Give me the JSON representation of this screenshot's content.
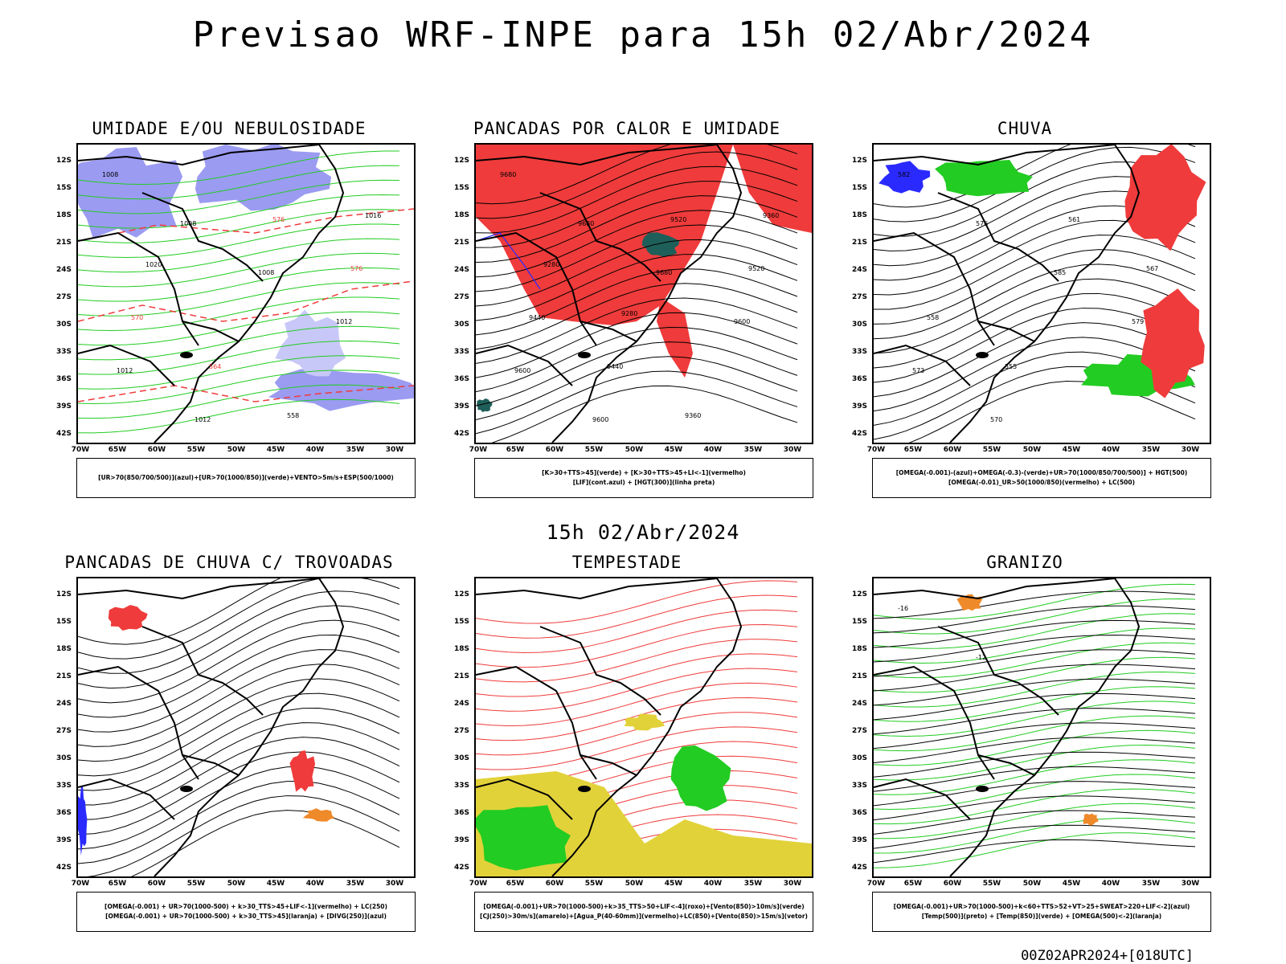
{
  "title": "Previsao WRF-INPE  para 15h 02/Abr/2024",
  "mid_title": "15h 02/Abr/2024",
  "footer": "00Z02APR2024+[018UTC]",
  "lat_labels": [
    "12S",
    "15S",
    "18S",
    "21S",
    "24S",
    "27S",
    "30S",
    "33S",
    "36S",
    "39S",
    "42S"
  ],
  "lon_labels": [
    "70W",
    "65W",
    "60W",
    "55W",
    "50W",
    "45W",
    "40W",
    "35W",
    "30W"
  ],
  "colors": {
    "blue": "#9b9bf2",
    "green": "#22cc22",
    "red": "#ef3b3b",
    "yellow": "#e2d23a",
    "orange": "#ef8a2a",
    "teal": "#1f5f5a",
    "darkblue": "#2a2aff"
  },
  "panels": [
    {
      "title": "UMIDADE E/OU NEBULOSIDADE",
      "legend": [
        "[UR>70(850/700/500)](azul)+[UR>70(1000/850)](verde)+VENTO>5m/s+ESP(500/1000)"
      ],
      "contour_labels": [
        "1008",
        "1008",
        "1008",
        "1012",
        "1012",
        "1012",
        "576",
        "576",
        "570",
        "564",
        "558",
        "1016",
        "1020"
      ]
    },
    {
      "title": "PANCADAS POR CALOR E UMIDADE",
      "legend": [
        "[K>30+TTS>45](verde) + [K>30+TTS>45+LI<-1](vermelho)",
        "[LIF](cont.azul) + [HGT(300)](linha preta)"
      ],
      "contour_labels": [
        "9680",
        "9680",
        "9680",
        "9600",
        "9600",
        "9600",
        "9520",
        "9520",
        "9440",
        "9440",
        "9360",
        "9360",
        "9280",
        "9280"
      ]
    },
    {
      "title": "CHUVA",
      "legend": [
        "[OMEGA(-0.001)-(azul)+OMEGA(-0.3)-(verde)+UR>70(1000/850/700/500)] + HGT(500)",
        "[OMEGA(-0.01)_UR>50(1000/850)(vermelho) + LC(500)"
      ],
      "contour_labels": [
        "582",
        "576",
        "585",
        "579",
        "573",
        "570",
        "561",
        "567",
        "558",
        "555"
      ]
    },
    {
      "title": "PANCADAS DE CHUVA C/ TROVOADAS",
      "legend": [
        "[OMEGA(-0.001) + UR>70(1000-500) + k>30_TTS>45+LIF<-1](vermelho) + LC(250)",
        "[OMEGA(-0.001) + UR>70(1000-500) + k>30_TTS>45](laranja) + [DIVG(250)](azul)"
      ],
      "contour_labels": []
    },
    {
      "title": "TEMPESTADE",
      "legend": [
        "[OMEGA(-0.001)+UR>70(1000-500)+k>35_TTS>50+LIF<-4](roxo)+[Vento(850)>10m/s](verde)",
        "[CJ(250)>30m/s](amarelo)+[Agua_P(40-60mm)](vermelho)+LC(850)+[Vento(850)>15m/s](vetor)"
      ],
      "contour_labels": []
    },
    {
      "title": "GRANIZO",
      "legend": [
        "[OMEGA(-0.001)+UR>70(1000-500)+k<60+TTS>52+VT>25+SWEAT>220+LIF<-2](azul)",
        "[Temp(500)](preto) + [Temp(850)](verde) + [OMEGA(500)<-2](laranja)"
      ],
      "contour_labels": [
        "-16",
        "-12"
      ]
    }
  ]
}
